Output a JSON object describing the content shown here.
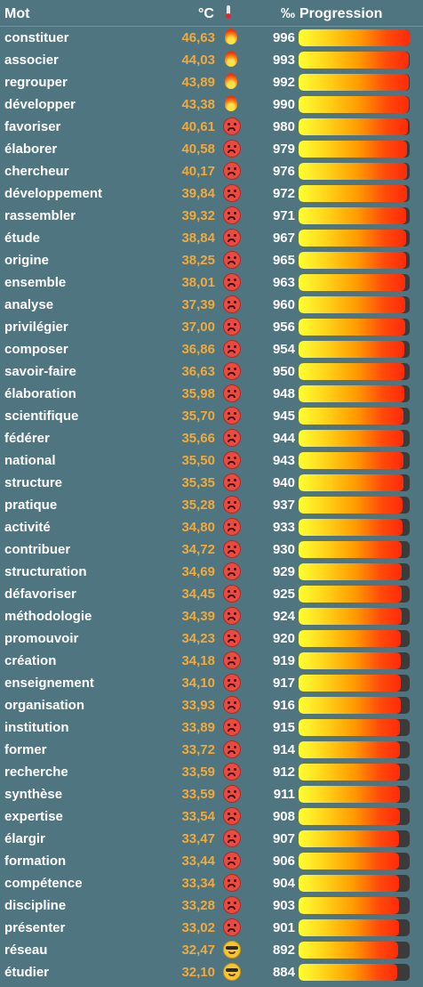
{
  "header": {
    "word": "Mot",
    "temperature": "°C",
    "thermometer_icon": "thermometer-icon",
    "permil": "‰",
    "progression": "Progression"
  },
  "colors": {
    "background": "#4f7680",
    "temperature_text": "#f2a93b",
    "bar_track": "#3b3b3b",
    "gradient_start": "#ffff33",
    "gradient_end": "#ff2a0a"
  },
  "rows": [
    {
      "word": "constituer",
      "temp": "46,63",
      "icon": "fire",
      "score": "996",
      "progress": 0.996
    },
    {
      "word": "associer",
      "temp": "44,03",
      "icon": "fire",
      "score": "993",
      "progress": 0.993
    },
    {
      "word": "regrouper",
      "temp": "43,89",
      "icon": "fire",
      "score": "992",
      "progress": 0.992
    },
    {
      "word": "développer",
      "temp": "43,38",
      "icon": "fire",
      "score": "990",
      "progress": 0.99
    },
    {
      "word": "favoriser",
      "temp": "40,61",
      "icon": "angry-face",
      "score": "980",
      "progress": 0.98
    },
    {
      "word": "élaborer",
      "temp": "40,58",
      "icon": "angry-face",
      "score": "979",
      "progress": 0.979
    },
    {
      "word": "chercheur",
      "temp": "40,17",
      "icon": "angry-face",
      "score": "976",
      "progress": 0.976
    },
    {
      "word": "développement",
      "temp": "39,84",
      "icon": "angry-face",
      "score": "972",
      "progress": 0.972
    },
    {
      "word": "rassembler",
      "temp": "39,32",
      "icon": "angry-face",
      "score": "971",
      "progress": 0.971
    },
    {
      "word": "étude",
      "temp": "38,84",
      "icon": "angry-face",
      "score": "967",
      "progress": 0.967
    },
    {
      "word": "origine",
      "temp": "38,25",
      "icon": "angry-face",
      "score": "965",
      "progress": 0.965
    },
    {
      "word": "ensemble",
      "temp": "38,01",
      "icon": "angry-face",
      "score": "963",
      "progress": 0.963
    },
    {
      "word": "analyse",
      "temp": "37,39",
      "icon": "angry-face",
      "score": "960",
      "progress": 0.96
    },
    {
      "word": "privilégier",
      "temp": "37,00",
      "icon": "angry-face",
      "score": "956",
      "progress": 0.956
    },
    {
      "word": "composer",
      "temp": "36,86",
      "icon": "angry-face",
      "score": "954",
      "progress": 0.954
    },
    {
      "word": "savoir-faire",
      "temp": "36,63",
      "icon": "angry-face",
      "score": "950",
      "progress": 0.95
    },
    {
      "word": "élaboration",
      "temp": "35,98",
      "icon": "angry-face",
      "score": "948",
      "progress": 0.948
    },
    {
      "word": "scientifique",
      "temp": "35,70",
      "icon": "angry-face",
      "score": "945",
      "progress": 0.945
    },
    {
      "word": "fédérer",
      "temp": "35,66",
      "icon": "angry-face",
      "score": "944",
      "progress": 0.944
    },
    {
      "word": "national",
      "temp": "35,50",
      "icon": "angry-face",
      "score": "943",
      "progress": 0.943
    },
    {
      "word": "structure",
      "temp": "35,35",
      "icon": "angry-face",
      "score": "940",
      "progress": 0.94
    },
    {
      "word": "pratique",
      "temp": "35,28",
      "icon": "angry-face",
      "score": "937",
      "progress": 0.937
    },
    {
      "word": "activité",
      "temp": "34,80",
      "icon": "angry-face",
      "score": "933",
      "progress": 0.933
    },
    {
      "word": "contribuer",
      "temp": "34,72",
      "icon": "angry-face",
      "score": "930",
      "progress": 0.93
    },
    {
      "word": "structuration",
      "temp": "34,69",
      "icon": "angry-face",
      "score": "929",
      "progress": 0.929
    },
    {
      "word": "défavoriser",
      "temp": "34,45",
      "icon": "angry-face",
      "score": "925",
      "progress": 0.925
    },
    {
      "word": "méthodologie",
      "temp": "34,39",
      "icon": "angry-face",
      "score": "924",
      "progress": 0.924
    },
    {
      "word": "promouvoir",
      "temp": "34,23",
      "icon": "angry-face",
      "score": "920",
      "progress": 0.92
    },
    {
      "word": "création",
      "temp": "34,18",
      "icon": "angry-face",
      "score": "919",
      "progress": 0.919
    },
    {
      "word": "enseignement",
      "temp": "34,10",
      "icon": "angry-face",
      "score": "917",
      "progress": 0.917
    },
    {
      "word": "organisation",
      "temp": "33,93",
      "icon": "angry-face",
      "score": "916",
      "progress": 0.916
    },
    {
      "word": "institution",
      "temp": "33,89",
      "icon": "angry-face",
      "score": "915",
      "progress": 0.915
    },
    {
      "word": "former",
      "temp": "33,72",
      "icon": "angry-face",
      "score": "914",
      "progress": 0.914
    },
    {
      "word": "recherche",
      "temp": "33,59",
      "icon": "angry-face",
      "score": "912",
      "progress": 0.912
    },
    {
      "word": "synthèse",
      "temp": "33,59",
      "icon": "angry-face",
      "score": "911",
      "progress": 0.911
    },
    {
      "word": "expertise",
      "temp": "33,54",
      "icon": "angry-face",
      "score": "908",
      "progress": 0.908
    },
    {
      "word": "élargir",
      "temp": "33,47",
      "icon": "angry-face",
      "score": "907",
      "progress": 0.907
    },
    {
      "word": "formation",
      "temp": "33,44",
      "icon": "angry-face",
      "score": "906",
      "progress": 0.906
    },
    {
      "word": "compétence",
      "temp": "33,34",
      "icon": "angry-face",
      "score": "904",
      "progress": 0.904
    },
    {
      "word": "discipline",
      "temp": "33,28",
      "icon": "angry-face",
      "score": "903",
      "progress": 0.903
    },
    {
      "word": "présenter",
      "temp": "33,02",
      "icon": "angry-face",
      "score": "901",
      "progress": 0.901
    },
    {
      "word": "réseau",
      "temp": "32,47",
      "icon": "sunglasses-face",
      "score": "892",
      "progress": 0.892
    },
    {
      "word": "étudier",
      "temp": "32,10",
      "icon": "sunglasses-face",
      "score": "884",
      "progress": 0.884
    }
  ]
}
